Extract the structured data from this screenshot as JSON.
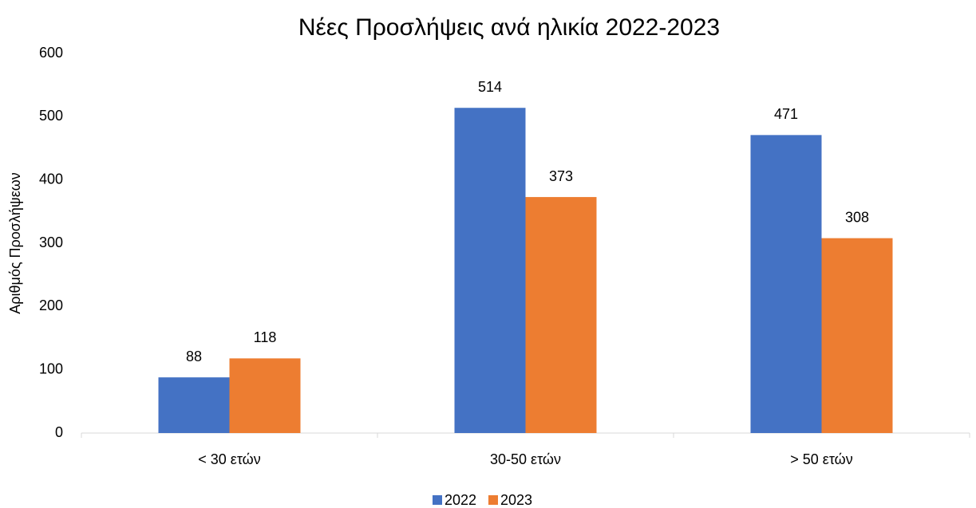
{
  "chart_data": {
    "type": "bar",
    "title": "Νέες Προσλήψεις ανά ηλικία 2022-2023",
    "y_axis_label": "Αριθμός Προσλήψεων",
    "categories": [
      "< 30 ετών",
      "30-50 ετών",
      "> 50 ετών"
    ],
    "series": [
      {
        "name": "2022",
        "color": "#4472c4",
        "values": [
          88,
          514,
          471
        ]
      },
      {
        "name": "2023",
        "color": "#ed7d31",
        "values": [
          118,
          373,
          308
        ]
      }
    ],
    "ylim": [
      0,
      600
    ],
    "yticks": [
      0,
      100,
      200,
      300,
      400,
      500,
      600
    ],
    "grid": false,
    "legend": "bottom"
  }
}
